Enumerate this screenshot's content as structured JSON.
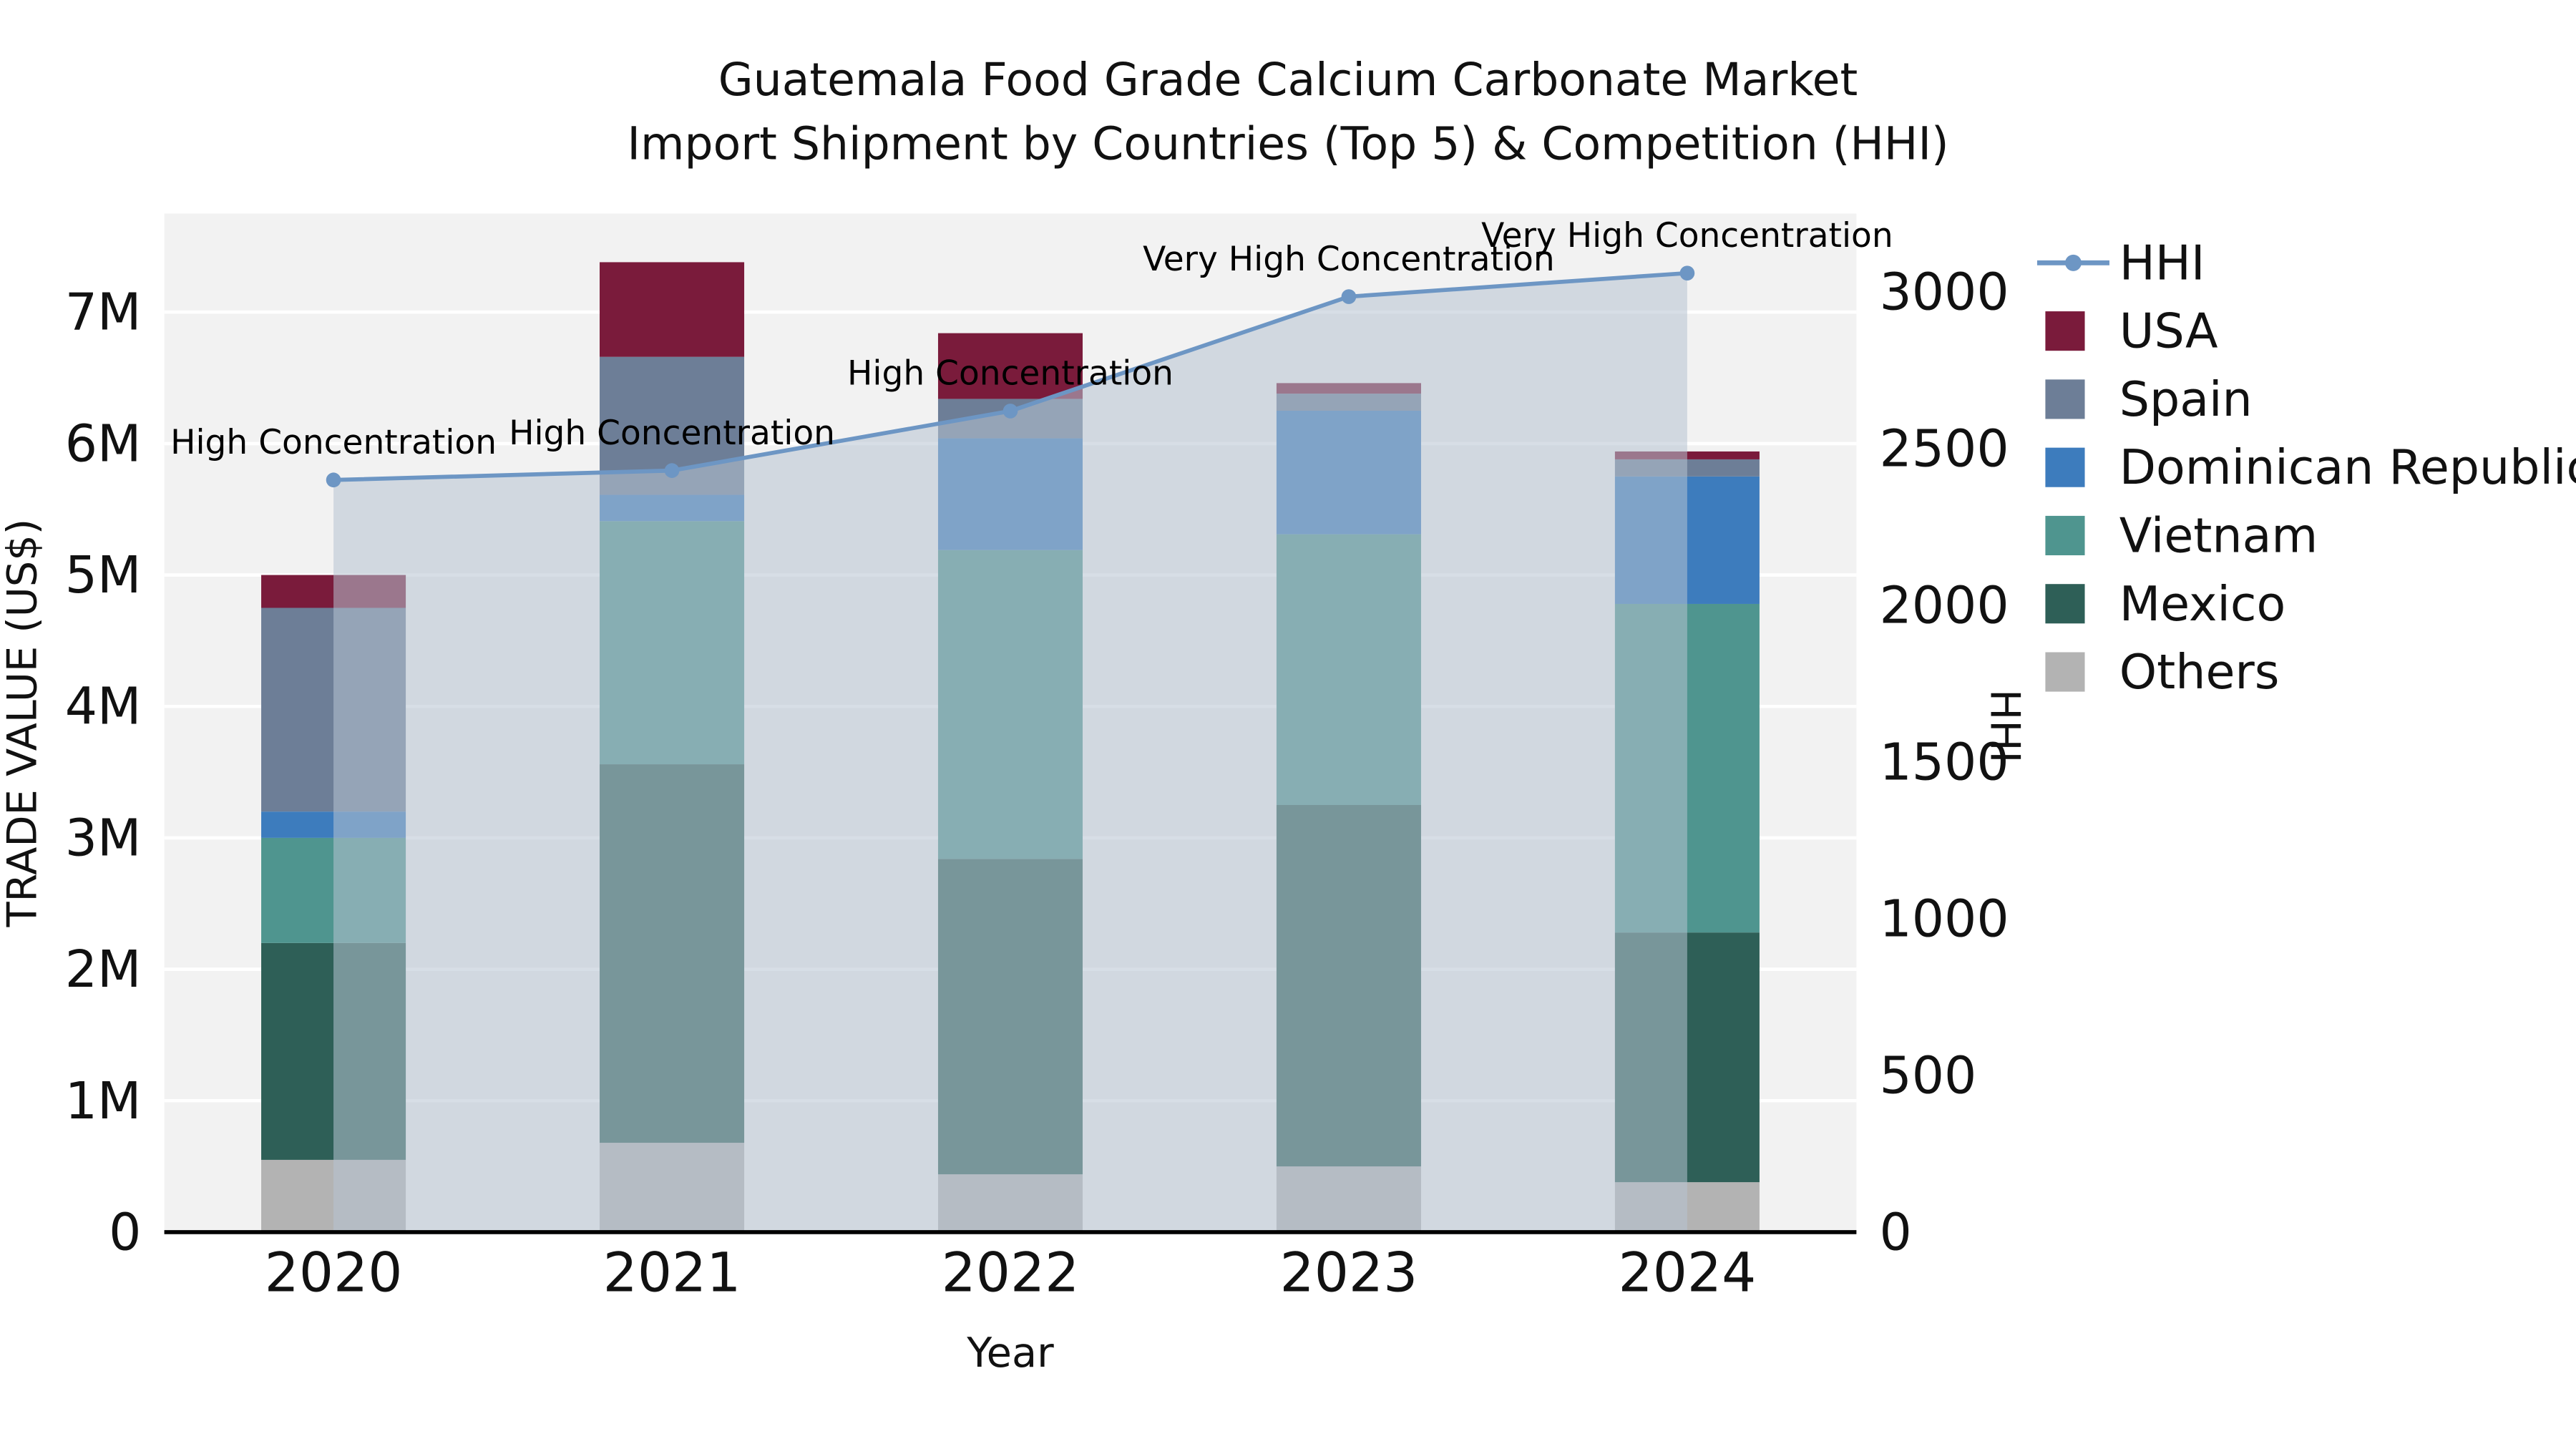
{
  "title": {
    "line1": "Guatemala Food Grade Calcium Carbonate Market",
    "line2": "Import Shipment by Countries (Top 5) & Competition (HHI)"
  },
  "axes": {
    "x_label": "Year",
    "y_left_label": "TRADE VALUE (US$)",
    "y_right_label": "HHI"
  },
  "chart_data": {
    "type": "bar",
    "subtype": "stacked-bars-with-line-on-secondary-axis",
    "unit": "million US$",
    "categories": [
      "2020",
      "2021",
      "2022",
      "2023",
      "2024"
    ],
    "series": [
      {
        "name": "Others",
        "color": "#b3b3b3",
        "values_musd": [
          0.55,
          0.68,
          0.44,
          0.5,
          0.38
        ]
      },
      {
        "name": "Mexico",
        "color": "#2e5f57",
        "values_musd": [
          1.65,
          2.88,
          2.4,
          2.75,
          1.9
        ]
      },
      {
        "name": "Vietnam",
        "color": "#4f958f",
        "values_musd": [
          0.8,
          1.85,
          2.35,
          2.06,
          2.5
        ]
      },
      {
        "name": "Dominican Republic",
        "color": "#3d7cbd",
        "values_musd": [
          0.2,
          0.2,
          0.85,
          0.94,
          0.97
        ]
      },
      {
        "name": "Spain",
        "color": "#6d7e97",
        "values_musd": [
          1.55,
          1.05,
          0.3,
          0.13,
          0.13
        ]
      },
      {
        "name": "USA",
        "color": "#7a1b3b",
        "values_musd": [
          0.25,
          0.72,
          0.5,
          0.08,
          0.06
        ]
      }
    ],
    "totals_musd": [
      5.0,
      7.38,
      6.84,
      6.46,
      5.94
    ],
    "line_series": {
      "name": "HHI",
      "axis": "right",
      "color": "#6d96c4",
      "area_fill_color": "#b7c2d1",
      "area_fill_opacity": 0.55,
      "values": [
        2400,
        2430,
        2620,
        2985,
        3060
      ]
    },
    "annotations": [
      {
        "category": "2020",
        "label": "High Concentration"
      },
      {
        "category": "2021",
        "label": "High Concentration"
      },
      {
        "category": "2022",
        "label": "High Concentration"
      },
      {
        "category": "2023",
        "label": "Very High Concentration"
      },
      {
        "category": "2024",
        "label": "Very High Concentration"
      }
    ],
    "y_left": {
      "tick_labels": [
        "0",
        "1M",
        "2M",
        "3M",
        "4M",
        "5M",
        "6M",
        "7M"
      ],
      "tick_values_musd": [
        0,
        1,
        2,
        3,
        4,
        5,
        6,
        7
      ],
      "max_musd": 7.75
    },
    "y_right": {
      "tick_labels": [
        "0",
        "500",
        "1000",
        "1500",
        "2000",
        "2500",
        "3000"
      ],
      "tick_values": [
        0,
        500,
        1000,
        1500,
        2000,
        2500,
        3000
      ],
      "max": 3250
    },
    "grid": "horizontal-white-lines",
    "legend_position": "right-outside"
  },
  "legend": {
    "items": [
      {
        "label": "HHI",
        "type": "line",
        "color": "#6d96c4"
      },
      {
        "label": "USA",
        "type": "swatch",
        "color": "#7a1b3b"
      },
      {
        "label": "Spain",
        "type": "swatch",
        "color": "#6d7e97"
      },
      {
        "label": "Dominican Republic",
        "type": "swatch",
        "color": "#3d7cbd"
      },
      {
        "label": "Vietnam",
        "type": "swatch",
        "color": "#4f958f"
      },
      {
        "label": "Mexico",
        "type": "swatch",
        "color": "#2e5f57"
      },
      {
        "label": "Others",
        "type": "swatch",
        "color": "#b3b3b3"
      }
    ]
  },
  "plot": {
    "background": "#f2f2f2",
    "gridline_color": "#ffffff",
    "spine_color": "#000000"
  }
}
